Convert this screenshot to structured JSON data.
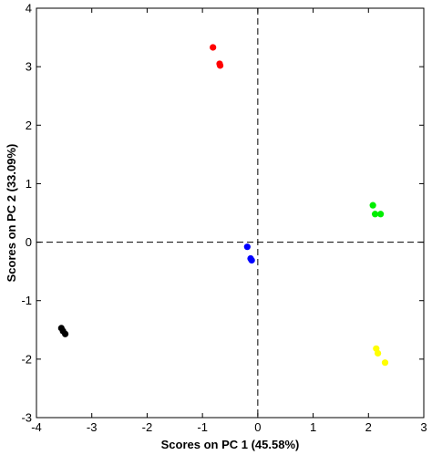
{
  "chart_data": {
    "type": "scatter",
    "xlabel": "Scores on PC 1 (45.58%)",
    "ylabel": "Scores on PC 2 (33.09%)",
    "xlim": [
      -4,
      3
    ],
    "ylim": [
      -3,
      4
    ],
    "xticks": [
      -4,
      -3,
      -2,
      -1,
      0,
      1,
      2,
      3
    ],
    "yticks": [
      -3,
      -2,
      -1,
      0,
      1,
      2,
      3,
      4
    ],
    "xtick_labels": [
      "-4",
      "-3",
      "-2",
      "-1",
      "0",
      "1",
      "2",
      "3"
    ],
    "ytick_labels": [
      "-3",
      "-2",
      "-1",
      "0",
      "1",
      "2",
      "3",
      "4"
    ],
    "grid": false,
    "reference_lines": {
      "x": 0,
      "y": 0,
      "style": "dashed"
    },
    "series": [
      {
        "color": "#ff0000",
        "points": [
          [
            -0.81,
            3.33
          ],
          [
            -0.69,
            3.05
          ],
          [
            -0.68,
            3.02
          ]
        ]
      },
      {
        "color": "#00ee00",
        "points": [
          [
            2.08,
            0.63
          ],
          [
            2.12,
            0.48
          ],
          [
            2.22,
            0.48
          ]
        ]
      },
      {
        "color": "#0000ff",
        "points": [
          [
            -0.19,
            -0.08
          ],
          [
            -0.13,
            -0.28
          ],
          [
            -0.11,
            -0.31
          ]
        ]
      },
      {
        "color": "#000000",
        "points": [
          [
            -3.55,
            -1.47
          ],
          [
            -3.52,
            -1.52
          ],
          [
            -3.48,
            -1.57
          ]
        ]
      },
      {
        "color": "#ffff00",
        "points": [
          [
            2.14,
            -1.82
          ],
          [
            2.17,
            -1.9
          ],
          [
            2.3,
            -2.06
          ]
        ]
      }
    ]
  }
}
